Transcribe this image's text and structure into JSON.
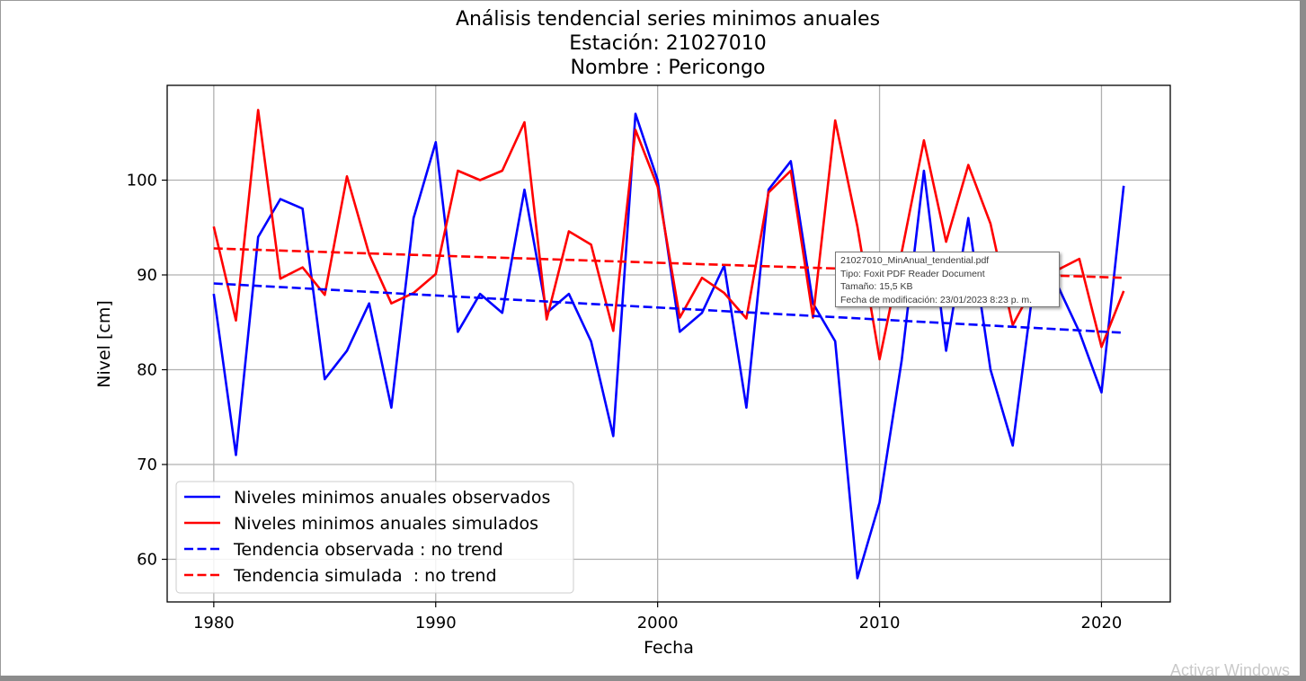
{
  "chart_data": {
    "type": "line",
    "title": [
      "Análisis tendencial series minimos anuales",
      "Estación: 21027010",
      "Nombre : Pericongo"
    ],
    "xlabel": "Fecha",
    "ylabel": "Nivel [cm]",
    "xlim": [
      1977.9,
      2023.1
    ],
    "ylim": [
      55.5,
      110
    ],
    "xticks": [
      1980,
      1990,
      2000,
      2010,
      2020
    ],
    "yticks": [
      60,
      70,
      80,
      90,
      100
    ],
    "grid": true,
    "legend_position": "lower-left",
    "x": [
      1980,
      1981,
      1982,
      1983,
      1984,
      1985,
      1986,
      1987,
      1988,
      1989,
      1990,
      1991,
      1992,
      1993,
      1994,
      1995,
      1996,
      1997,
      1998,
      1999,
      2000,
      2001,
      2002,
      2003,
      2004,
      2005,
      2006,
      2007,
      2008,
      2009,
      2010,
      2011,
      2012,
      2013,
      2014,
      2015,
      2016,
      2017,
      2018,
      2019,
      2020,
      2021
    ],
    "series": [
      {
        "name": "Niveles minimos anuales observados",
        "color": "#0000ff",
        "style": "solid",
        "values": [
          88,
          71,
          94,
          98,
          97,
          79,
          82,
          87,
          76,
          96,
          104,
          84,
          88,
          86,
          99,
          86,
          88,
          83,
          73,
          107,
          100,
          84,
          86,
          91,
          76,
          99,
          102,
          87,
          83,
          58,
          66,
          81,
          101,
          82,
          96,
          80,
          72,
          90,
          89,
          84,
          77.6,
          99.4
        ]
      },
      {
        "name": "Niveles minimos anuales simulados",
        "color": "#ff0000",
        "style": "solid",
        "values": [
          95.1,
          85.2,
          107.4,
          89.6,
          90.8,
          87.9,
          100.4,
          92.2,
          87,
          88.1,
          90.1,
          101,
          100,
          101,
          106.1,
          85.3,
          94.6,
          93.2,
          84.1,
          105.3,
          99.3,
          85.5,
          89.7,
          88.1,
          85.4,
          98.7,
          101,
          85.5,
          106.3,
          95.1,
          81.1,
          92.4,
          104.2,
          93.5,
          101.6,
          95.4,
          84.7,
          89.1,
          90.5,
          91.7,
          82.4,
          88.3
        ]
      },
      {
        "name": "Tendencia observada : no trend",
        "color": "#0000ff",
        "style": "dashed",
        "values_endpoints": {
          "x": [
            1980,
            2021
          ],
          "y": [
            89.1,
            83.9
          ]
        }
      },
      {
        "name": "Tendencia simulada  : no trend",
        "color": "#ff0000",
        "style": "dashed",
        "values_endpoints": {
          "x": [
            1980,
            2021
          ],
          "y": [
            92.8,
            89.7
          ]
        }
      }
    ]
  },
  "tooltip": {
    "filename": "21027010_MinAnual_tendential.pdf",
    "type": "Tipo: Foxit PDF Reader Document",
    "size": "Tamaño: 15,5 KB",
    "modified": "Fecha de modificación: 23/01/2023 8:23 p. m."
  },
  "watermark": "Activar Windows"
}
